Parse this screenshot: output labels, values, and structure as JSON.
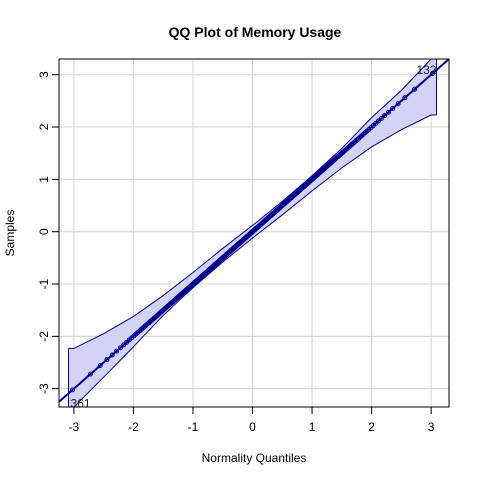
{
  "chart_data": {
    "type": "scatter",
    "title": "QQ Plot of Memory Usage",
    "xlabel": "Normality Quantiles",
    "ylabel": "Samples",
    "xlim": [
      -3.25,
      3.3
    ],
    "ylim": [
      -3.35,
      3.3
    ],
    "xticks": [
      -3,
      -2,
      -1,
      0,
      1,
      2,
      3
    ],
    "yticks": [
      -3,
      -2,
      -1,
      0,
      1,
      2,
      3
    ],
    "grid": true,
    "colors": {
      "points": "#00008B",
      "band_fill": "#D3D3F5",
      "band_line": "#00008B",
      "grid": "#D3D3D3"
    },
    "reference_line": {
      "intercept": 0,
      "slope": 1
    },
    "point_count": 500,
    "points_sample": {
      "x_range": [
        -3.09,
        3.09
      ],
      "y_equals_x": true
    },
    "confidence_band": {
      "x": [
        -3.09,
        -3.0,
        -2.5,
        -2.0,
        -1.5,
        -1.0,
        -0.5,
        0.0,
        0.5,
        1.0,
        1.5,
        2.0,
        2.5,
        3.0,
        3.09
      ],
      "upper": [
        -2.23,
        -2.23,
        -1.95,
        -1.62,
        -1.22,
        -0.78,
        -0.32,
        0.12,
        0.58,
        1.07,
        1.59,
        2.18,
        2.7,
        3.3,
        3.3
      ],
      "lower": [
        -3.35,
        -3.35,
        -2.78,
        -2.2,
        -1.6,
        -1.07,
        -0.58,
        -0.12,
        0.32,
        0.78,
        1.22,
        1.62,
        1.95,
        2.23,
        2.23
      ]
    },
    "point_labels": [
      {
        "text": "132",
        "x": 3.09,
        "y": 3.09
      },
      {
        "text": "361",
        "x": -3.09,
        "y": -3.09
      }
    ]
  }
}
